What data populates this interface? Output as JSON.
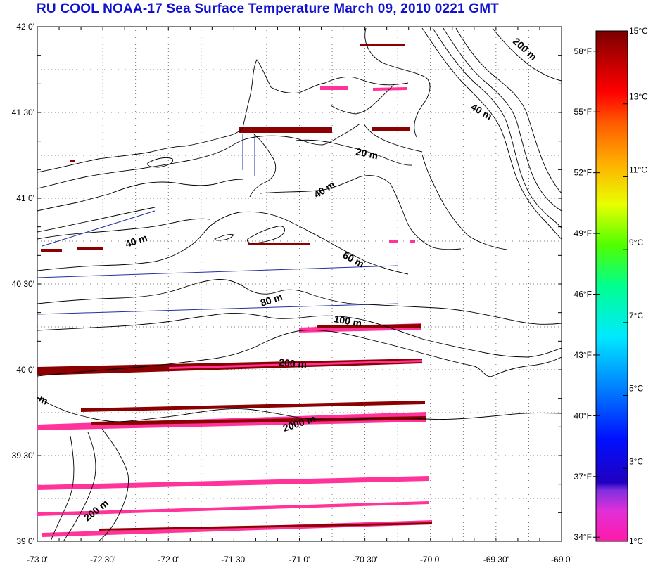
{
  "title": "RU COOL  NOAA-17 Sea Surface Temperature March 09, 2010 0221 GMT",
  "map": {
    "lon_range": [
      -73.0,
      -69.0
    ],
    "lat_range": [
      39.0,
      42.0
    ],
    "lat_labels": [
      {
        "lat": 42.0,
        "text": "42 0'"
      },
      {
        "lat": 41.5,
        "text": "41 30'"
      },
      {
        "lat": 41.0,
        "text": "41 0'"
      },
      {
        "lat": 40.5,
        "text": "40 30'"
      },
      {
        "lat": 40.0,
        "text": "40 0'"
      },
      {
        "lat": 39.5,
        "text": "39 30'"
      },
      {
        "lat": 39.0,
        "text": "39 0'"
      }
    ],
    "lon_labels": [
      {
        "lon": -73.0,
        "text": "-73 0'"
      },
      {
        "lon": -72.5,
        "text": "-72 30'"
      },
      {
        "lon": -72.0,
        "text": "-72 0'"
      },
      {
        "lon": -71.5,
        "text": "-71 30'"
      },
      {
        "lon": -71.0,
        "text": "-71 0'"
      },
      {
        "lon": -70.5,
        "text": "-70 30'"
      },
      {
        "lon": -70.0,
        "text": "-70 0'"
      },
      {
        "lon": -69.5,
        "text": "-69 30'"
      },
      {
        "lon": -69.0,
        "text": "-69 0'"
      }
    ],
    "isobath_labels": [
      "200 m",
      "40 m",
      "20 m",
      "40 m",
      "40 m",
      "60 m",
      "80 m",
      "100 m",
      "200 m",
      "2000 m",
      "m",
      "200 m"
    ],
    "colors": {
      "contour": "#000000",
      "track": "#2030a0",
      "grid": "#555555",
      "sst_dark": "#8b0000",
      "sst_pink": "#ff3399"
    }
  },
  "colorbar": {
    "min_c": 1,
    "max_c": 15,
    "celsius_labels": [
      {
        "value": 15,
        "text": "15°C"
      },
      {
        "value": 13,
        "text": "13°C"
      },
      {
        "value": 11,
        "text": "11°C"
      },
      {
        "value": 9,
        "text": "9°C"
      },
      {
        "value": 7,
        "text": "7°C"
      },
      {
        "value": 5,
        "text": "5°C"
      },
      {
        "value": 3,
        "text": "3°C"
      },
      {
        "value": 1,
        "text": "1°C"
      }
    ],
    "fahrenheit_labels": [
      {
        "value": 58,
        "text": "58°F"
      },
      {
        "value": 55,
        "text": "55°F"
      },
      {
        "value": 52,
        "text": "52°F"
      },
      {
        "value": 49,
        "text": "49°F"
      },
      {
        "value": 46,
        "text": "46°F"
      },
      {
        "value": 43,
        "text": "43°F"
      },
      {
        "value": 40,
        "text": "40°F"
      },
      {
        "value": 37,
        "text": "37°F"
      },
      {
        "value": 34,
        "text": "34°F"
      }
    ],
    "stops": [
      "#ff1aa8",
      "#c040ff",
      "#5010c8",
      "#0020ff",
      "#0090ff",
      "#00e8ff",
      "#00ff80",
      "#60ff00",
      "#e8ff00",
      "#ffb000",
      "#ff6000",
      "#ff0000",
      "#c00000",
      "#800000"
    ]
  }
}
